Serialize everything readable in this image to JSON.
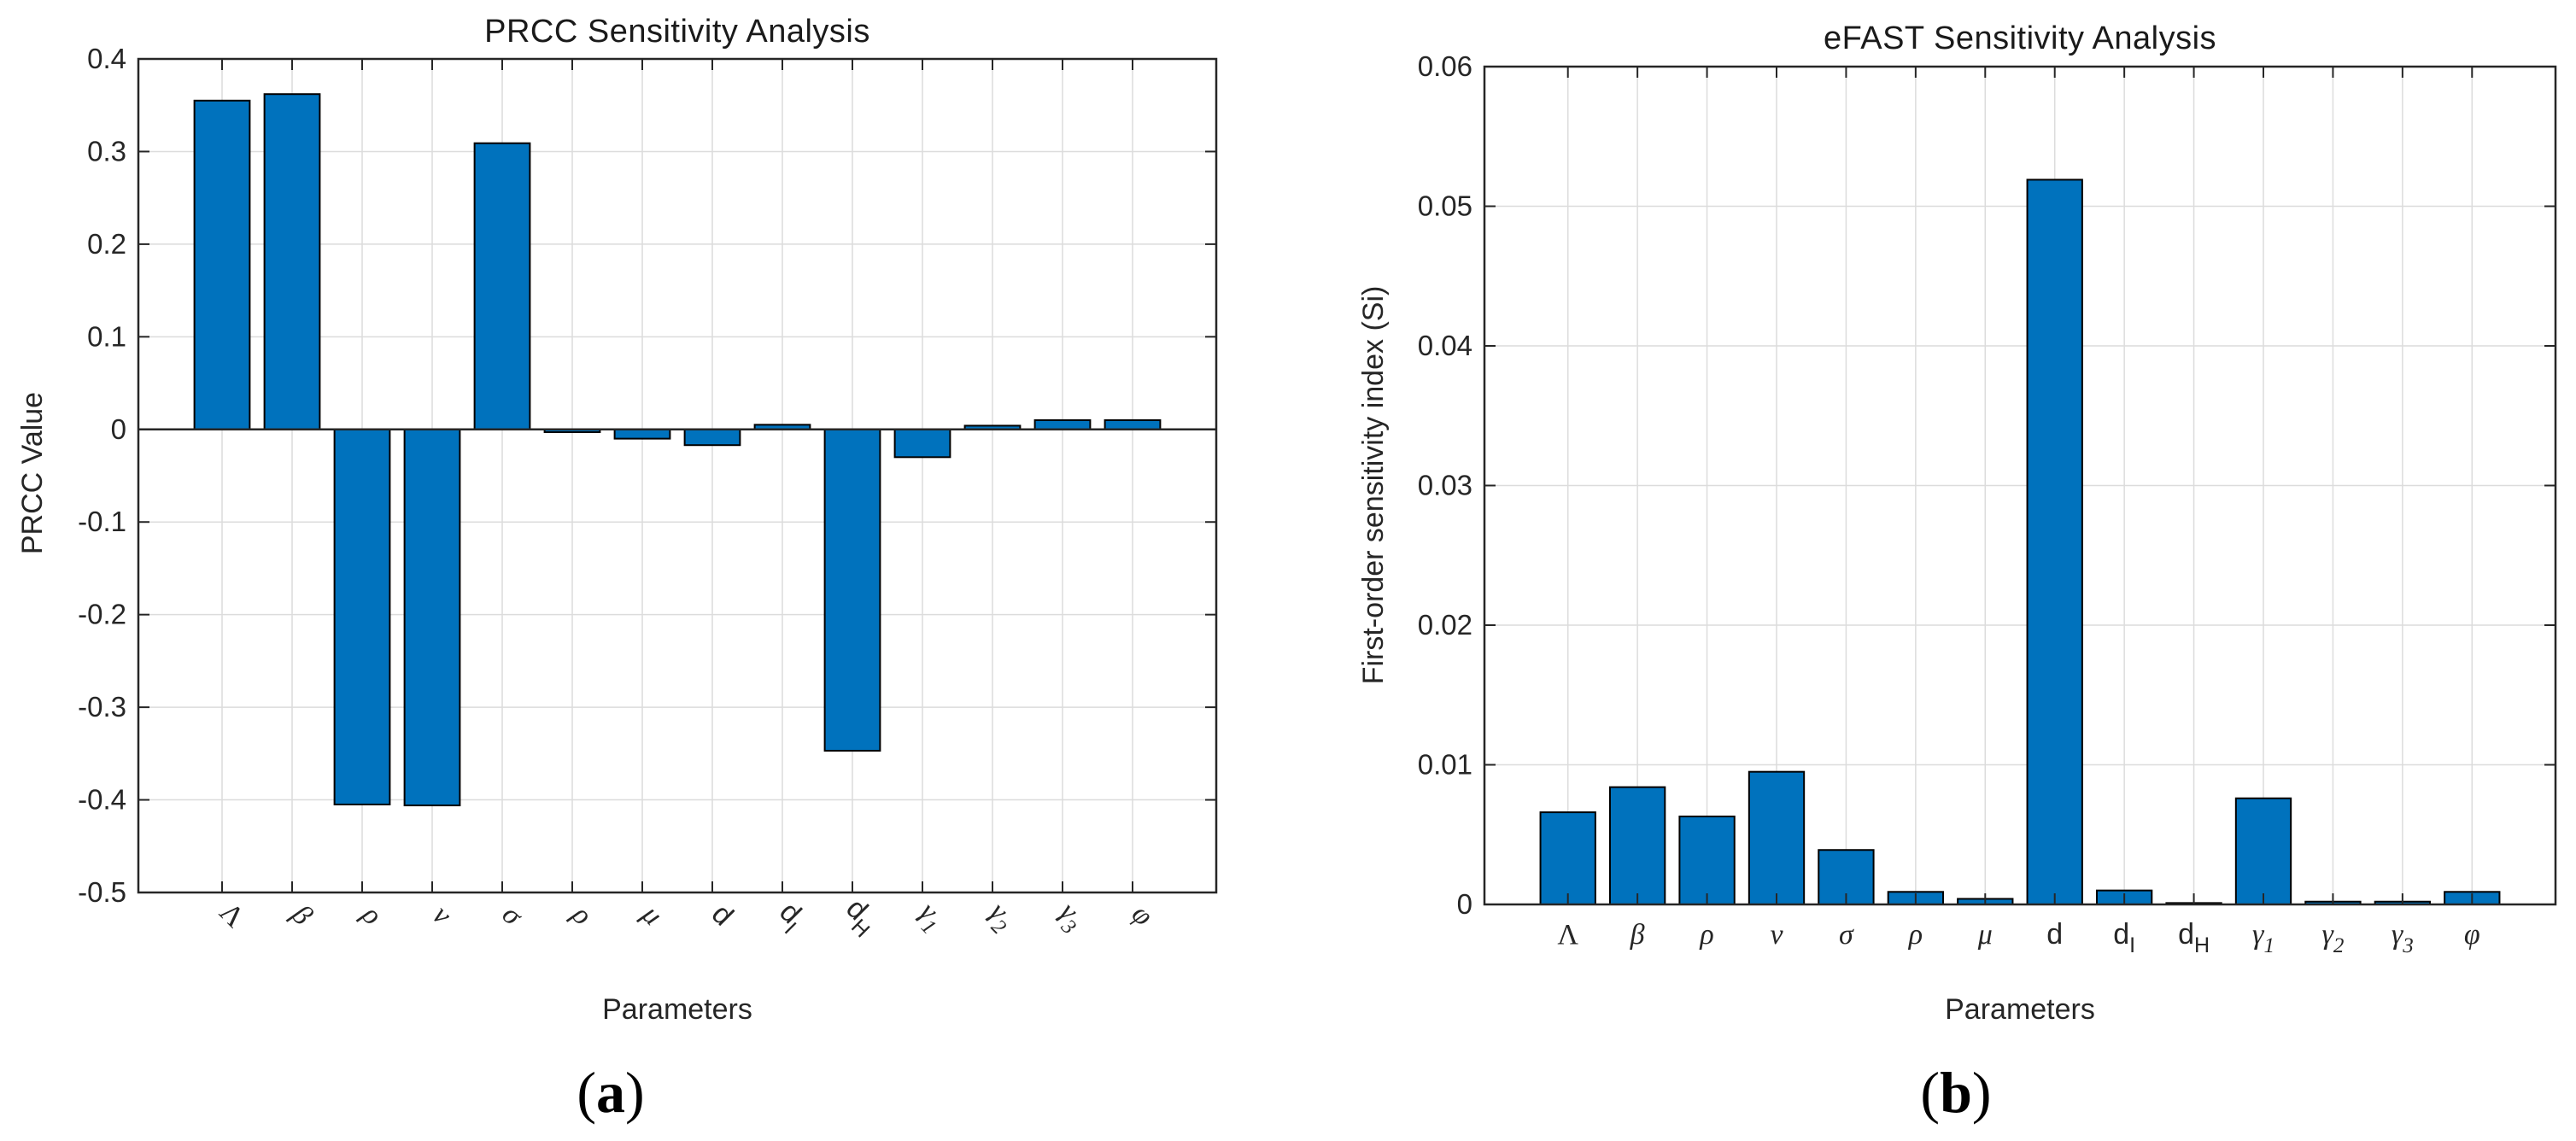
{
  "figure": {
    "background": "#ffffff",
    "captions": {
      "left": {
        "open": "(",
        "letter": "a",
        "close": ")"
      },
      "right": {
        "open": "(",
        "letter": "b",
        "close": ")"
      }
    }
  },
  "colors": {
    "bar_fill": "#0072BD",
    "bar_edge": "#000000",
    "axis": "#262626",
    "grid": "#dcdcdc",
    "tick_text": "#262626"
  },
  "chart_data": [
    {
      "type": "bar",
      "title": "PRCC Sensitivity Analysis",
      "xlabel": "Parameters",
      "ylabel": "PRCC Value",
      "ylim": [
        -0.5,
        0.4
      ],
      "grid": true,
      "legend": "none",
      "xtick_rotation": 45,
      "yticks": [
        0.4,
        0.3,
        0.2,
        0.1,
        0,
        -0.1,
        -0.2,
        -0.3,
        -0.4,
        -0.5
      ],
      "ytick_labels": [
        "0.4",
        "0.3",
        "0.2",
        "0.1",
        "0",
        "-0.1",
        "-0.2",
        "-0.3",
        "-0.4",
        "-0.5"
      ],
      "categories": [
        {
          "text": "Λ",
          "sub": "",
          "style": "upright"
        },
        {
          "text": "β",
          "sub": "",
          "style": "italic"
        },
        {
          "text": "ρ",
          "sub": "",
          "style": "italic"
        },
        {
          "text": "ν",
          "sub": "",
          "style": "italic"
        },
        {
          "text": "σ",
          "sub": "",
          "style": "italic"
        },
        {
          "text": "ρ",
          "sub": "",
          "style": "italic"
        },
        {
          "text": "μ",
          "sub": "",
          "style": "italic"
        },
        {
          "text": "d",
          "sub": "",
          "style": "latin"
        },
        {
          "text": "d",
          "sub": "I",
          "style": "latin"
        },
        {
          "text": "d",
          "sub": "H",
          "style": "latin"
        },
        {
          "text": "γ",
          "sub": "1",
          "style": "italic"
        },
        {
          "text": "γ",
          "sub": "2",
          "style": "italic"
        },
        {
          "text": "γ",
          "sub": "3",
          "style": "italic"
        },
        {
          "text": "φ",
          "sub": "",
          "style": "italic"
        }
      ],
      "values": [
        0.355,
        0.362,
        -0.405,
        -0.406,
        0.309,
        -0.003,
        -0.01,
        -0.017,
        0.005,
        -0.347,
        -0.03,
        0.004,
        0.01,
        0.01
      ]
    },
    {
      "type": "bar",
      "title": "eFAST Sensitivity Analysis",
      "xlabel": "Parameters",
      "ylabel": "First-order sensitivity index (Si)",
      "ylim": [
        0,
        0.06
      ],
      "grid": true,
      "legend": "none",
      "xtick_rotation": 0,
      "yticks": [
        0,
        0.01,
        0.02,
        0.03,
        0.04,
        0.05,
        0.06
      ],
      "ytick_labels": [
        "0",
        "0.01",
        "0.02",
        "0.03",
        "0.04",
        "0.05",
        "0.06"
      ],
      "categories": [
        {
          "text": "Λ",
          "sub": "",
          "style": "upright"
        },
        {
          "text": "β",
          "sub": "",
          "style": "italic"
        },
        {
          "text": "ρ",
          "sub": "",
          "style": "italic"
        },
        {
          "text": "ν",
          "sub": "",
          "style": "italic"
        },
        {
          "text": "σ",
          "sub": "",
          "style": "italic"
        },
        {
          "text": "ρ",
          "sub": "",
          "style": "italic"
        },
        {
          "text": "μ",
          "sub": "",
          "style": "italic"
        },
        {
          "text": "d",
          "sub": "",
          "style": "latin"
        },
        {
          "text": "d",
          "sub": "I",
          "style": "latin"
        },
        {
          "text": "d",
          "sub": "H",
          "style": "latin"
        },
        {
          "text": "γ",
          "sub": "1",
          "style": "italic"
        },
        {
          "text": "γ",
          "sub": "2",
          "style": "italic"
        },
        {
          "text": "γ",
          "sub": "3",
          "style": "italic"
        },
        {
          "text": "φ",
          "sub": "",
          "style": "italic"
        }
      ],
      "values": [
        0.0066,
        0.0084,
        0.0063,
        0.0095,
        0.0039,
        0.0009,
        0.0004,
        0.0519,
        0.001,
        0.0001,
        0.0076,
        0.0002,
        0.0002,
        0.0009
      ]
    }
  ]
}
